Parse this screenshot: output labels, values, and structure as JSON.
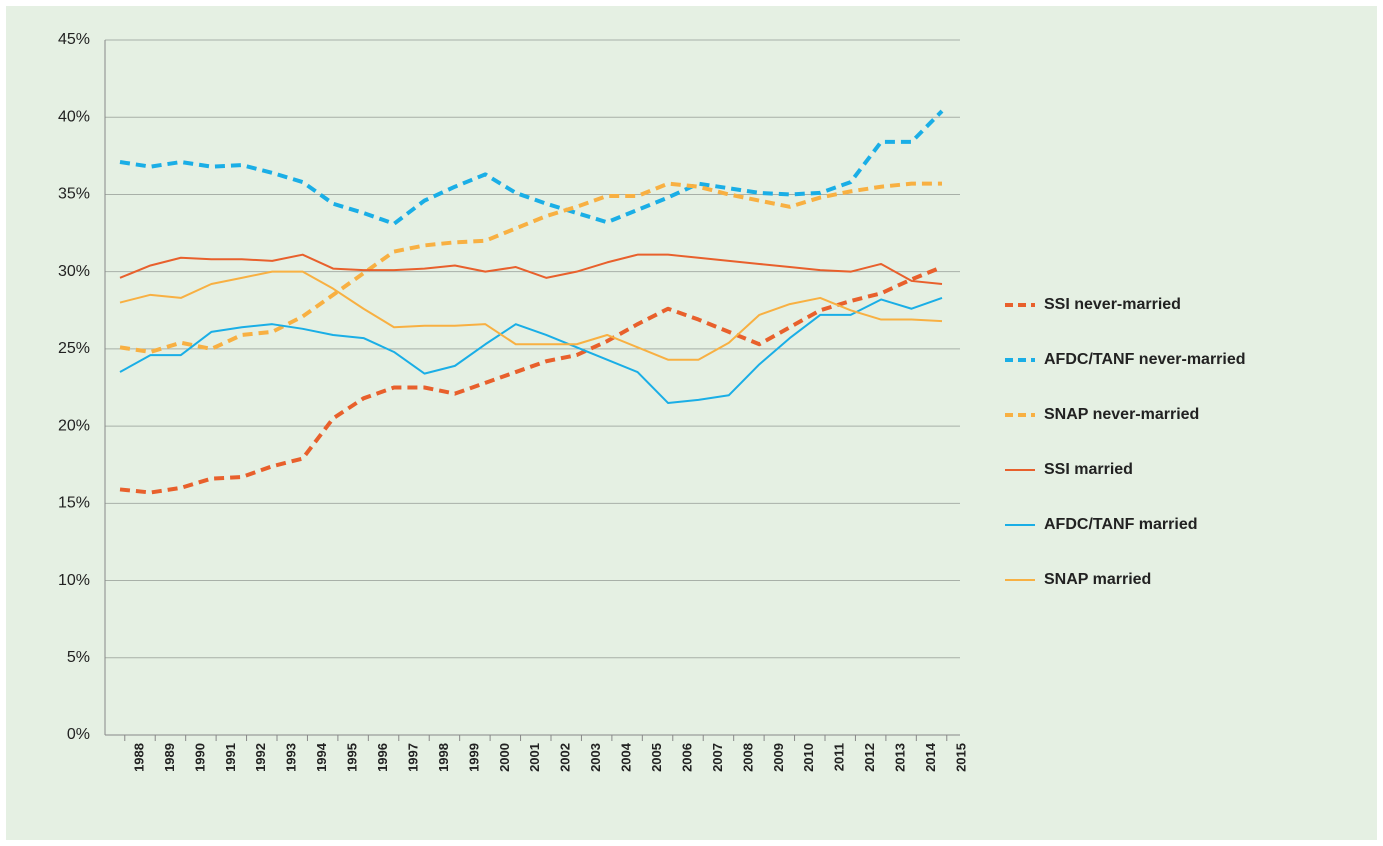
{
  "chart_data": {
    "type": "line",
    "categories": [
      "1988",
      "1989",
      "1990",
      "1991",
      "1992",
      "1993",
      "1994",
      "1995",
      "1996",
      "1997",
      "1998",
      "1999",
      "2000",
      "2001",
      "2002",
      "2003",
      "2004",
      "2005",
      "2006",
      "2007",
      "2008",
      "2009",
      "2010",
      "2011",
      "2012",
      "2013",
      "2014",
      "2015"
    ],
    "series": [
      {
        "name": "SSI never-married",
        "color": "#e8602c",
        "dashed": true,
        "values": [
          15.9,
          15.7,
          16.0,
          16.6,
          16.7,
          17.4,
          17.9,
          20.5,
          21.8,
          22.5,
          22.5,
          22.1,
          22.8,
          23.5,
          24.2,
          24.6,
          25.5,
          26.6,
          27.6,
          26.9,
          26.1,
          25.3,
          26.4,
          27.5,
          28.1,
          28.6,
          29.5,
          30.3
        ]
      },
      {
        "name": "AFDC/TANF never-married",
        "color": "#1aaee6",
        "dashed": true,
        "values": [
          37.1,
          36.8,
          37.1,
          36.8,
          36.9,
          36.4,
          35.8,
          34.4,
          33.8,
          33.1,
          34.6,
          35.5,
          36.3,
          35.1,
          34.4,
          33.8,
          33.2,
          34.0,
          34.8,
          35.7,
          35.4,
          35.1,
          35.0,
          35.1,
          35.8,
          38.4,
          38.4,
          40.4
        ]
      },
      {
        "name": "SNAP never-married",
        "color": "#f8b042",
        "dashed": true,
        "values": [
          25.1,
          24.8,
          25.4,
          25.0,
          25.9,
          26.1,
          27.1,
          28.5,
          29.9,
          31.3,
          31.7,
          31.9,
          32.0,
          32.8,
          33.6,
          34.2,
          34.9,
          34.9,
          35.7,
          35.5,
          35.0,
          34.6,
          34.2,
          34.8,
          35.2,
          35.5,
          35.7,
          35.7
        ]
      },
      {
        "name": "SSI married",
        "color": "#e8602c",
        "dashed": false,
        "values": [
          29.6,
          30.4,
          30.9,
          30.8,
          30.8,
          30.7,
          31.1,
          30.2,
          30.1,
          30.1,
          30.2,
          30.4,
          30.0,
          30.3,
          29.6,
          30.0,
          30.6,
          31.1,
          31.1,
          30.9,
          30.7,
          30.5,
          30.3,
          30.1,
          30.0,
          30.5,
          29.4,
          29.2
        ]
      },
      {
        "name": "AFDC/TANF married",
        "color": "#1aaee6",
        "dashed": false,
        "values": [
          23.5,
          24.6,
          24.6,
          26.1,
          26.4,
          26.6,
          26.3,
          25.9,
          25.7,
          24.8,
          23.4,
          23.9,
          25.3,
          26.6,
          25.9,
          25.1,
          24.3,
          23.5,
          21.5,
          21.7,
          22.0,
          24.0,
          25.7,
          27.2,
          27.2,
          28.2,
          27.6,
          28.3
        ]
      },
      {
        "name": "SNAP married",
        "color": "#f8b042",
        "dashed": false,
        "values": [
          28.0,
          28.5,
          28.3,
          29.2,
          29.6,
          30.0,
          30.0,
          28.9,
          27.6,
          26.4,
          26.5,
          26.5,
          26.6,
          25.3,
          25.3,
          25.3,
          25.9,
          25.1,
          24.3,
          24.3,
          25.4,
          27.2,
          27.9,
          28.3,
          27.5,
          26.9,
          26.9,
          26.8
        ]
      }
    ],
    "ylim": [
      0,
      45
    ],
    "yticks": [
      {
        "value": 0,
        "label": "0%"
      },
      {
        "value": 5,
        "label": "5%"
      },
      {
        "value": 10,
        "label": "10%"
      },
      {
        "value": 15,
        "label": "15%"
      },
      {
        "value": 20,
        "label": "20%"
      },
      {
        "value": 25,
        "label": "25%"
      },
      {
        "value": 30,
        "label": "30%"
      },
      {
        "value": 35,
        "label": "35%"
      },
      {
        "value": 40,
        "label": "40%"
      },
      {
        "value": 45,
        "label": "45%"
      }
    ],
    "grid": true,
    "legend": "right"
  }
}
